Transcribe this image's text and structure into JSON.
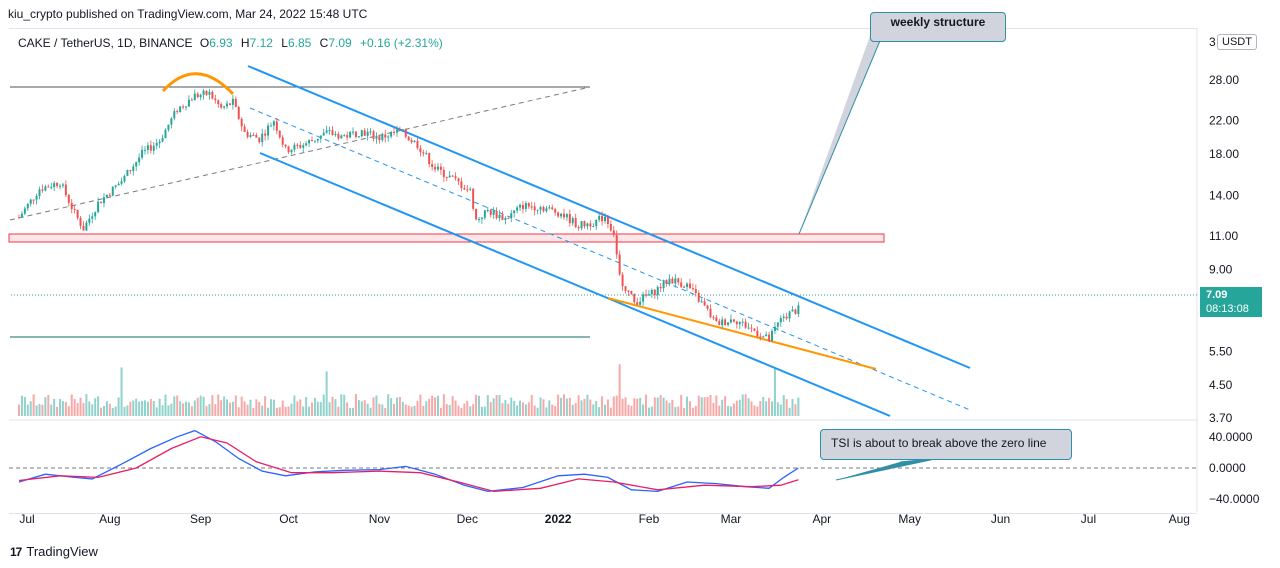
{
  "publisher_line": "kiu_crypto published on TradingView.com, Mar 24, 2022 15:48 UTC",
  "legend": {
    "symbol": "CAKE / TetherUS, 1D, BINANCE",
    "open_label": "O",
    "open": "6.93",
    "high_label": "H",
    "high": "7.12",
    "low_label": "L",
    "low": "6.85",
    "close_label": "C",
    "close": "7.09",
    "change": "+0.16 (+2.31%)"
  },
  "currency_button": "USDT",
  "last_price": {
    "value": "7.09",
    "countdown": "08:13:08"
  },
  "price_axis_top_label": "3",
  "annotations": {
    "weekly": "weekly structure",
    "tsi": "TSI is about to break above the zero line"
  },
  "brand": "TradingView",
  "colors": {
    "up": "#26a69a",
    "down": "#ef5350",
    "channel": "#2196f3",
    "support": "#ff9800",
    "zone": "#f23645",
    "tsi": "#2962ff",
    "signal": "#e91e63"
  },
  "chart_data": [
    {
      "type": "candlestick",
      "title": "CAKE / TetherUS, 1D, BINANCE",
      "y_scale": "log",
      "y_ticks": [
        28.0,
        22.0,
        18.0,
        14.0,
        11.0,
        9.0,
        7.09,
        5.5,
        4.5,
        3.7
      ],
      "y_tick_labels": [
        "28.00",
        "22.00",
        "18.00",
        "14.00",
        "11.00",
        "9.00",
        "5.50",
        "4.50",
        "3.70"
      ],
      "x_tick_labels": [
        "Jul",
        "Aug",
        "Sep",
        "Oct",
        "Nov",
        "Dec",
        "2022",
        "Feb",
        "Mar",
        "Apr",
        "May",
        "Jun",
        "Jul",
        "Aug"
      ],
      "price_path": [
        [
          "2021-07-01",
          12.3
        ],
        [
          "2021-07-08",
          14.6
        ],
        [
          "2021-07-15",
          15.2
        ],
        [
          "2021-07-20",
          12.6
        ],
        [
          "2021-07-23",
          11.5
        ],
        [
          "2021-07-28",
          13.4
        ],
        [
          "2021-08-05",
          15.3
        ],
        [
          "2021-08-12",
          18.0
        ],
        [
          "2021-08-18",
          19.5
        ],
        [
          "2021-08-24",
          23.5
        ],
        [
          "2021-08-30",
          25.5
        ],
        [
          "2021-09-04",
          25.8
        ],
        [
          "2021-09-08",
          23.6
        ],
        [
          "2021-09-12",
          24.5
        ],
        [
          "2021-09-16",
          20.4
        ],
        [
          "2021-09-21",
          19.7
        ],
        [
          "2021-09-26",
          22.0
        ],
        [
          "2021-09-30",
          18.4
        ],
        [
          "2021-10-06",
          19.0
        ],
        [
          "2021-10-14",
          20.4
        ],
        [
          "2021-10-20",
          20.0
        ],
        [
          "2021-10-26",
          20.6
        ],
        [
          "2021-11-01",
          19.8
        ],
        [
          "2021-11-08",
          20.6
        ],
        [
          "2021-11-14",
          19.0
        ],
        [
          "2021-11-20",
          16.5
        ],
        [
          "2021-11-26",
          15.5
        ],
        [
          "2021-12-02",
          14.4
        ],
        [
          "2021-12-04",
          12.1
        ],
        [
          "2021-12-08",
          12.8
        ],
        [
          "2021-12-14",
          12.2
        ],
        [
          "2021-12-20",
          13.2
        ],
        [
          "2021-12-26",
          13.1
        ],
        [
          "2022-01-02",
          12.6
        ],
        [
          "2022-01-08",
          11.7
        ],
        [
          "2022-01-14",
          12.0
        ],
        [
          "2022-01-17",
          12.4
        ],
        [
          "2022-01-20",
          11.2
        ],
        [
          "2022-01-22",
          8.6
        ],
        [
          "2022-01-27",
          7.4
        ],
        [
          "2022-02-02",
          7.8
        ],
        [
          "2022-02-08",
          8.5
        ],
        [
          "2022-02-14",
          8.2
        ],
        [
          "2022-02-20",
          7.2
        ],
        [
          "2022-02-24",
          6.5
        ],
        [
          "2022-03-02",
          6.7
        ],
        [
          "2022-03-08",
          6.3
        ],
        [
          "2022-03-14",
          5.9
        ],
        [
          "2022-03-16",
          6.3
        ],
        [
          "2022-03-19",
          6.8
        ],
        [
          "2022-03-24",
          7.09
        ]
      ],
      "volume_spikes": [
        "2021-08-05",
        "2021-10-14",
        "2022-01-22",
        "2022-03-16"
      ]
    },
    {
      "type": "line",
      "title": "TSI",
      "y_tick_labels": [
        "40.0000",
        "0.0000",
        "−40.0000"
      ],
      "ylim": [
        -45,
        45
      ],
      "series": [
        {
          "values": [
            [
              "2021-07-01",
              -18
            ],
            [
              "2021-07-10",
              -8
            ],
            [
              "2021-07-20",
              -12
            ],
            [
              "2021-07-26",
              -14
            ],
            [
              "2021-08-05",
              5
            ],
            [
              "2021-08-15",
              25
            ],
            [
              "2021-08-24",
              40
            ],
            [
              "2021-08-30",
              48
            ],
            [
              "2021-09-06",
              34
            ],
            [
              "2021-09-14",
              12
            ],
            [
              "2021-09-22",
              -4
            ],
            [
              "2021-09-30",
              -10
            ],
            [
              "2021-10-10",
              -5
            ],
            [
              "2021-10-20",
              -3
            ],
            [
              "2021-11-01",
              -2
            ],
            [
              "2021-11-10",
              2
            ],
            [
              "2021-11-20",
              -8
            ],
            [
              "2021-11-30",
              -22
            ],
            [
              "2021-12-08",
              -30
            ],
            [
              "2021-12-20",
              -25
            ],
            [
              "2022-01-01",
              -10
            ],
            [
              "2022-01-10",
              -8
            ],
            [
              "2022-01-18",
              -12
            ],
            [
              "2022-01-26",
              -28
            ],
            [
              "2022-02-04",
              -30
            ],
            [
              "2022-02-14",
              -18
            ],
            [
              "2022-02-24",
              -20
            ],
            [
              "2022-03-06",
              -24
            ],
            [
              "2022-03-14",
              -26
            ],
            [
              "2022-03-19",
              -12
            ],
            [
              "2022-03-24",
              0
            ]
          ]
        },
        {
          "values": [
            [
              "2021-07-01",
              -16
            ],
            [
              "2021-07-15",
              -10
            ],
            [
              "2021-07-28",
              -12
            ],
            [
              "2021-08-10",
              0
            ],
            [
              "2021-08-22",
              25
            ],
            [
              "2021-09-01",
              40
            ],
            [
              "2021-09-10",
              32
            ],
            [
              "2021-09-20",
              8
            ],
            [
              "2021-10-02",
              -6
            ],
            [
              "2021-10-16",
              -6
            ],
            [
              "2021-11-01",
              -4
            ],
            [
              "2021-11-15",
              -6
            ],
            [
              "2021-11-28",
              -18
            ],
            [
              "2021-12-10",
              -30
            ],
            [
              "2021-12-26",
              -26
            ],
            [
              "2022-01-08",
              -14
            ],
            [
              "2022-01-20",
              -18
            ],
            [
              "2022-02-04",
              -28
            ],
            [
              "2022-02-20",
              -22
            ],
            [
              "2022-03-08",
              -24
            ],
            [
              "2022-03-18",
              -22
            ],
            [
              "2022-03-24",
              -15
            ]
          ]
        }
      ]
    }
  ]
}
